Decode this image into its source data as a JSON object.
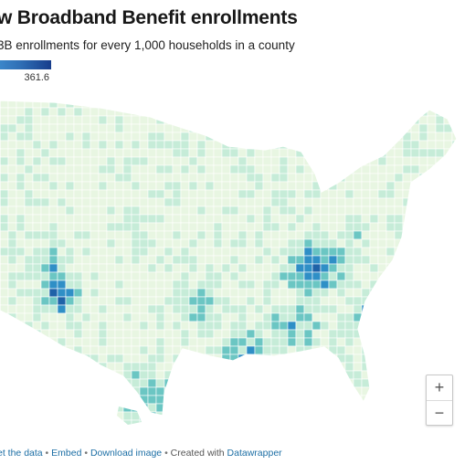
{
  "title": "w Broadband Benefit enrollments",
  "subtitle": "3B enrollments for every 1,000 households in a county",
  "legend": {
    "max_label": "361.6",
    "max_value": 361.6,
    "colors": [
      "#3b86c9",
      "#2f6fb5",
      "#173d8c"
    ]
  },
  "map": {
    "fill_light": "#e8f6e2",
    "fill_mid": "#c6ecd8",
    "fill_teal": "#6bc6c3",
    "fill_blue": "#2f8fc6",
    "fill_dark": "#1f62a8",
    "border_color": "#ffffff"
  },
  "zoom": {
    "in_label": "+",
    "out_label": "−"
  },
  "footer": {
    "get_data": "et the data",
    "sep1": " • ",
    "embed": "Embed",
    "sep2": " • ",
    "download": "Download image",
    "sep3": " • ",
    "created_with": "Created with ",
    "datawrapper": "Datawrapper"
  }
}
